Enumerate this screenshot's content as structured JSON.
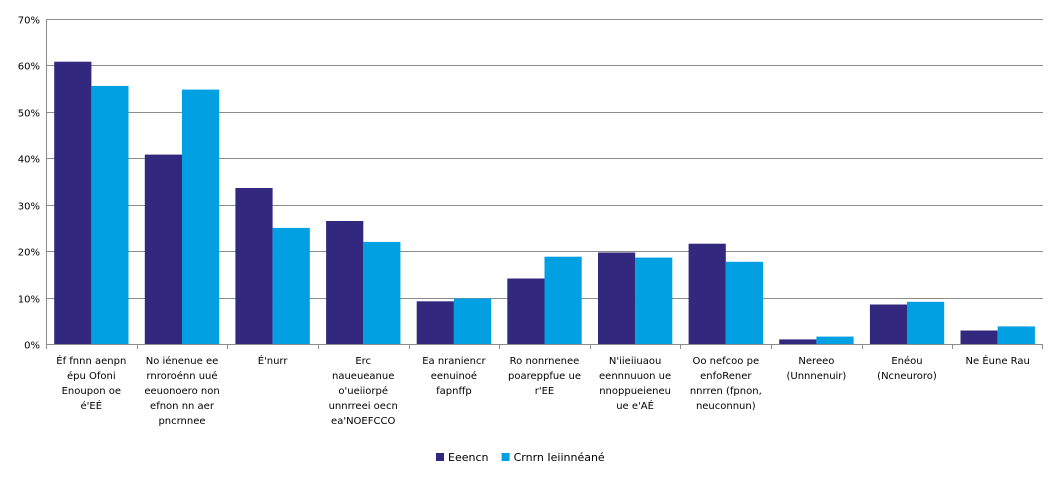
{
  "chart_data": {
    "type": "bar",
    "categories": [
      [
        "Éf fnnn aenpn",
        "épu Ofoni",
        "Enoupon oe",
        "é'EÉ"
      ],
      [
        "No iénenue ee",
        "rnroroénn uué",
        "eeuonoero non",
        "efnon nn aer",
        "pncrnnee"
      ],
      [
        "É'nurr"
      ],
      [
        "Erc",
        "naueueanue",
        "o'ueiiorpé",
        "unnrreei oecn",
        "ea'NOEFCCO"
      ],
      [
        "Ea nraniencr",
        "eenuinoé",
        "fapnffp"
      ],
      [
        "Ro nonrnenee",
        "poareppfue ue",
        "r'EE"
      ],
      [
        "N'iieiiuaou",
        "eennnuuon ue",
        "nnoppueieneu",
        "ue e'AÉ"
      ],
      [
        "Oo nefcoo pe",
        "enfoRener",
        "nnrren (fpnon,",
        "neuconnun)"
      ],
      [
        "Nereeo",
        "(Unnnenuir)"
      ],
      [
        "Enéou",
        "(Ncneuroro)"
      ],
      [
        "Ne Éune Rau"
      ]
    ],
    "series": [
      {
        "name": "Eeencn",
        "color": "#32287e",
        "values": [
          0.608,
          0.408,
          0.336,
          0.265,
          0.092,
          0.141,
          0.197,
          0.216,
          0.01,
          0.085,
          0.029
        ]
      },
      {
        "name": "Crnrn Ieiinnéané",
        "color": "#00a0e3",
        "values": [
          0.556,
          0.548,
          0.25,
          0.22,
          0.098,
          0.188,
          0.186,
          0.177,
          0.016,
          0.091,
          0.038
        ]
      }
    ],
    "yticks": [
      "0%",
      "10%",
      "20%",
      "30%",
      "40%",
      "50%",
      "60%",
      "70%"
    ],
    "ylim": [
      0,
      0.7
    ],
    "grid": true,
    "legend_position": "bottom"
  }
}
